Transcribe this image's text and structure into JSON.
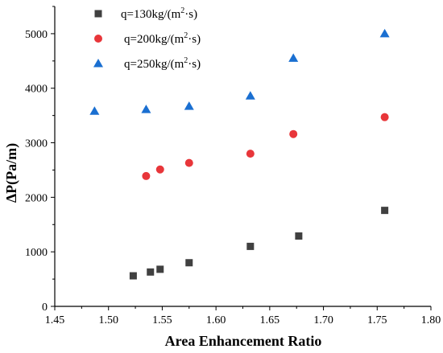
{
  "chart_data": {
    "type": "scatter",
    "title": "",
    "xlabel": "Area Enhancement Ratio",
    "ylabel": "ΔP(Pa/m)",
    "xlim": [
      1.45,
      1.8
    ],
    "ylim": [
      0,
      5500
    ],
    "xticks": [
      "1.45",
      "1.50",
      "1.55",
      "1.60",
      "1.65",
      "1.70",
      "1.75",
      "1.80"
    ],
    "yticks": [
      "0",
      "1000",
      "2000",
      "3000",
      "4000",
      "5000"
    ],
    "legend_position": "top-left",
    "grid": false,
    "series": [
      {
        "name_base": "q=130kg/(m",
        "name_sup": "2",
        "name_tail": "·s)",
        "marker": "square",
        "color": "#404040",
        "points": [
          {
            "x": 1.523,
            "y": 560
          },
          {
            "x": 1.539,
            "y": 630
          },
          {
            "x": 1.548,
            "y": 680
          },
          {
            "x": 1.575,
            "y": 800
          },
          {
            "x": 1.632,
            "y": 1100
          },
          {
            "x": 1.677,
            "y": 1290
          },
          {
            "x": 1.757,
            "y": 1760
          }
        ]
      },
      {
        "name_base": "q=200kg/(m",
        "name_sup": "2",
        "name_tail": "·s)",
        "marker": "circle",
        "color": "#e8363a",
        "points": [
          {
            "x": 1.535,
            "y": 2390
          },
          {
            "x": 1.548,
            "y": 2510
          },
          {
            "x": 1.575,
            "y": 2630
          },
          {
            "x": 1.632,
            "y": 2800
          },
          {
            "x": 1.672,
            "y": 3160
          },
          {
            "x": 1.757,
            "y": 3470
          }
        ]
      },
      {
        "name_base": "q=250kg/(m",
        "name_sup": "2",
        "name_tail": "·s)",
        "marker": "triangle",
        "color": "#1a6fd1",
        "points": [
          {
            "x": 1.487,
            "y": 3580
          },
          {
            "x": 1.535,
            "y": 3610
          },
          {
            "x": 1.575,
            "y": 3670
          },
          {
            "x": 1.632,
            "y": 3860
          },
          {
            "x": 1.672,
            "y": 4550
          },
          {
            "x": 1.757,
            "y": 5000
          }
        ]
      }
    ]
  }
}
